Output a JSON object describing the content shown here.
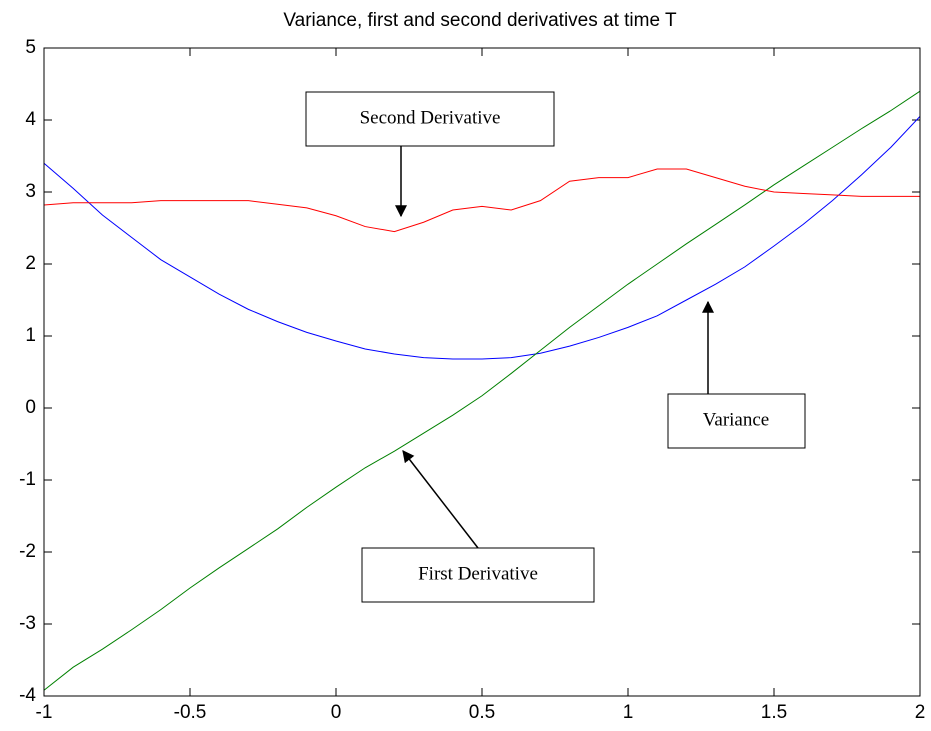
{
  "chart_data": {
    "type": "line",
    "title": "Variance, first and second derivatives at time T",
    "x": [
      -1,
      -0.9,
      -0.8,
      -0.7,
      -0.6,
      -0.5,
      -0.4,
      -0.3,
      -0.2,
      -0.1,
      0,
      0.1,
      0.2,
      0.3,
      0.4,
      0.5,
      0.6,
      0.7,
      0.8,
      0.9,
      1,
      1.1,
      1.2,
      1.3,
      1.4,
      1.5,
      1.6,
      1.7,
      1.8,
      1.9,
      2
    ],
    "series": [
      {
        "color": "#0000ff",
        "values": [
          3.4,
          3.05,
          2.68,
          2.37,
          2.06,
          1.82,
          1.58,
          1.37,
          1.2,
          1.05,
          0.93,
          0.82,
          0.75,
          0.7,
          0.68,
          0.68,
          0.7,
          0.76,
          0.86,
          0.98,
          1.12,
          1.28,
          1.5,
          1.72,
          1.96,
          2.25,
          2.55,
          2.88,
          3.24,
          3.62,
          4.05
        ]
      },
      {
        "color": "#008000",
        "values": [
          -3.92,
          -3.6,
          -3.35,
          -3.08,
          -2.8,
          -2.5,
          -2.22,
          -1.95,
          -1.68,
          -1.38,
          -1.1,
          -0.83,
          -0.6,
          -0.35,
          -0.1,
          0.17,
          0.48,
          0.8,
          1.12,
          1.42,
          1.72,
          2.0,
          2.28,
          2.55,
          2.82,
          3.1,
          3.36,
          3.62,
          3.88,
          4.13,
          4.4
        ]
      },
      {
        "color": "#ff0000",
        "values": [
          2.82,
          2.85,
          2.85,
          2.85,
          2.88,
          2.88,
          2.88,
          2.88,
          2.83,
          2.78,
          2.67,
          2.52,
          2.45,
          2.58,
          2.75,
          2.8,
          2.75,
          2.88,
          3.15,
          3.2,
          3.2,
          3.32,
          3.32,
          3.2,
          3.08,
          3.0,
          2.98,
          2.96,
          2.94,
          2.94,
          2.94
        ]
      }
    ],
    "xlim": [
      -1,
      2
    ],
    "xticks": [
      -1,
      -0.5,
      0,
      0.5,
      1,
      1.5,
      2
    ],
    "ylim": [
      -4,
      5
    ],
    "yticks": [
      -4,
      -3,
      -2,
      -1,
      0,
      1,
      2,
      3,
      4,
      5
    ],
    "annotations": [
      "Second Derivative",
      "Variance",
      "First Derivative"
    ]
  }
}
